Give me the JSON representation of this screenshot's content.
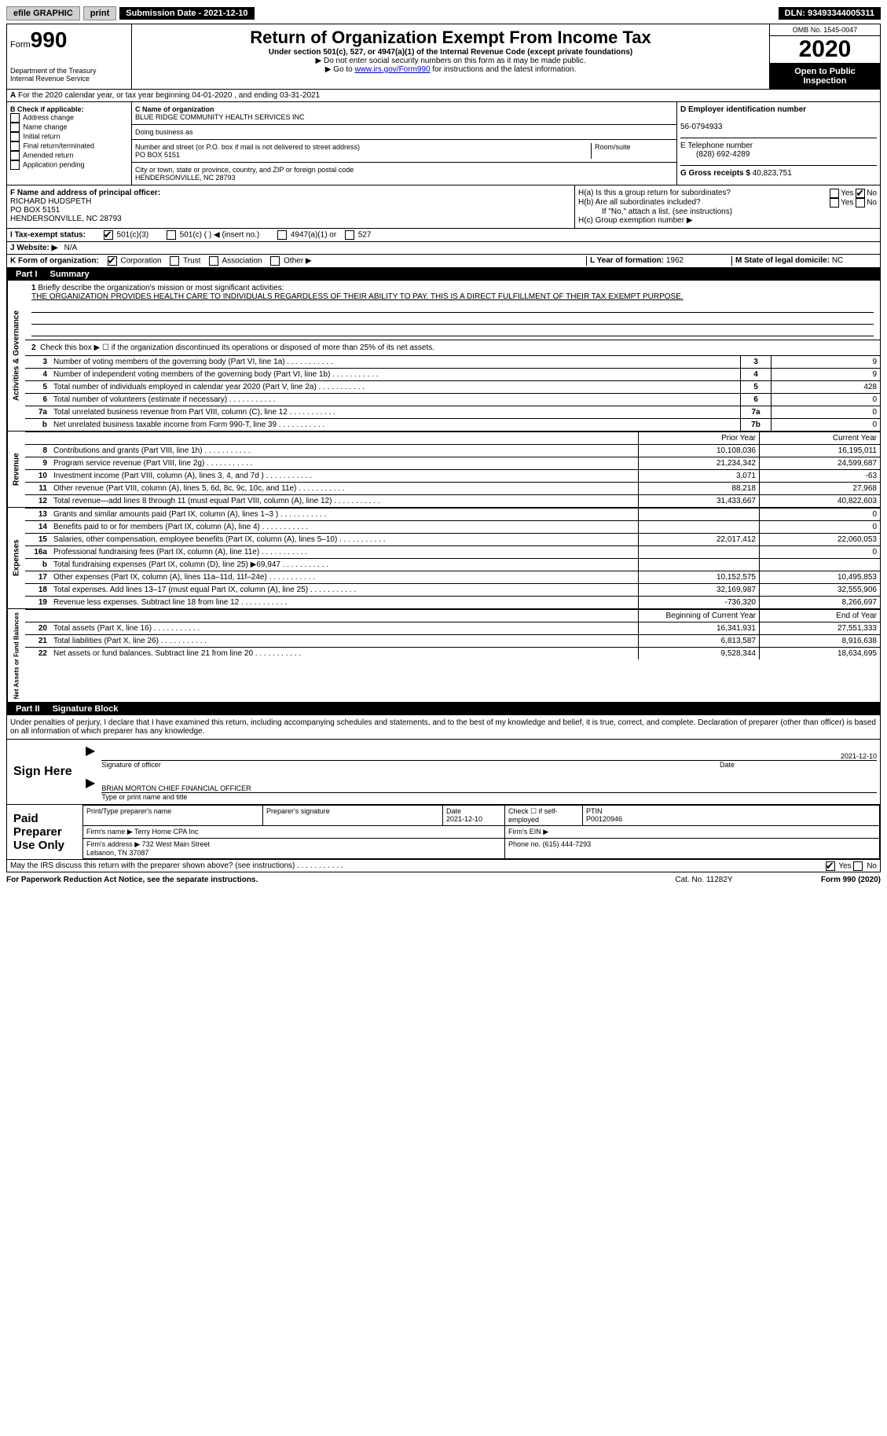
{
  "topbar": {
    "efile": "efile GRAPHIC",
    "print": "print",
    "submission_label": "Submission Date - 2021-12-10",
    "dln": "DLN: 93493344005311"
  },
  "header": {
    "form_label": "Form",
    "form_number": "990",
    "dept": "Department of the Treasury\nInternal Revenue Service",
    "title": "Return of Organization Exempt From Income Tax",
    "subtitle": "Under section 501(c), 527, or 4947(a)(1) of the Internal Revenue Code (except private foundations)",
    "instr1": "▶ Do not enter social security numbers on this form as it may be made public.",
    "instr2_pre": "▶ Go to ",
    "instr2_link": "www.irs.gov/Form990",
    "instr2_post": " for instructions and the latest information.",
    "omb": "OMB No. 1545-0047",
    "year": "2020",
    "open_public": "Open to Public Inspection"
  },
  "period": "For the 2020 calendar year, or tax year beginning 04-01-2020    , and ending 03-31-2021",
  "box_b": {
    "label": "B Check if applicable:",
    "items": [
      "Address change",
      "Name change",
      "Initial return",
      "Final return/terminated",
      "Amended return",
      "Application pending"
    ]
  },
  "box_c": {
    "name_label": "C Name of organization",
    "name": "BLUE RIDGE COMMUNITY HEALTH SERVICES INC",
    "dba_label": "Doing business as",
    "addr_label": "Number and street (or P.O. box if mail is not delivered to street address)",
    "room_label": "Room/suite",
    "addr": "PO BOX 5151",
    "city_label": "City or town, state or province, country, and ZIP or foreign postal code",
    "city": "HENDERSONVILLE, NC  28793"
  },
  "box_d": {
    "label": "D Employer identification number",
    "value": "56-0794933"
  },
  "box_e": {
    "label": "E Telephone number",
    "value": "(828) 692-4289"
  },
  "box_g": {
    "label": "G Gross receipts $",
    "value": "40,823,751"
  },
  "box_f": {
    "label": "F Name and address of principal officer:",
    "name": "RICHARD HUDSPETH",
    "addr1": "PO BOX 5151",
    "addr2": "HENDERSONVILLE, NC  28793"
  },
  "box_h": {
    "ha": "H(a)  Is this a group return for subordinates?",
    "hb": "H(b)  Are all subordinates included?",
    "hb_note": "If \"No,\" attach a list. (see instructions)",
    "hc": "H(c)  Group exemption number ▶",
    "yes": "Yes",
    "no": "No"
  },
  "box_i": {
    "label": "I    Tax-exempt status:",
    "opts": [
      "501(c)(3)",
      "501(c) (  ) ◀ (insert no.)",
      "4947(a)(1) or",
      "527"
    ]
  },
  "box_j": {
    "label": "J    Website: ▶",
    "value": "N/A"
  },
  "box_k": {
    "label": "K Form of organization:",
    "opts": [
      "Corporation",
      "Trust",
      "Association",
      "Other ▶"
    ]
  },
  "box_l": {
    "label": "L Year of formation:",
    "value": "1962"
  },
  "box_m": {
    "label": "M State of legal domicile:",
    "value": "NC"
  },
  "parts": {
    "p1_label": "Part I",
    "p1_title": "Summary",
    "p2_label": "Part II",
    "p2_title": "Signature Block"
  },
  "summary": {
    "q1_label": "1",
    "q1": "Briefly describe the organization's mission or most significant activities:",
    "q1_text": "THE ORGANIZATION PROVIDES HEALTH CARE TO INDIVIDUALS REGARDLESS OF THEIR ABILITY TO PAY. THIS IS A DIRECT FULFILLMENT OF THEIR TAX EXEMPT PURPOSE.",
    "q2": "Check this box ▶ ☐ if the organization discontinued its operations or disposed of more than 25% of its net assets.",
    "lines_gov": [
      {
        "n": "3",
        "desc": "Number of voting members of the governing body (Part VI, line 1a)",
        "box": "3",
        "val": "9"
      },
      {
        "n": "4",
        "desc": "Number of independent voting members of the governing body (Part VI, line 1b)",
        "box": "4",
        "val": "9"
      },
      {
        "n": "5",
        "desc": "Total number of individuals employed in calendar year 2020 (Part V, line 2a)",
        "box": "5",
        "val": "428"
      },
      {
        "n": "6",
        "desc": "Total number of volunteers (estimate if necessary)",
        "box": "6",
        "val": "0"
      },
      {
        "n": "7a",
        "desc": "Total unrelated business revenue from Part VIII, column (C), line 12",
        "box": "7a",
        "val": "0"
      },
      {
        "n": "b",
        "desc": "Net unrelated business taxable income from Form 990-T, line 39",
        "box": "7b",
        "val": "0"
      }
    ],
    "col_headers": {
      "prior": "Prior Year",
      "current": "Current Year"
    },
    "revenue": [
      {
        "n": "8",
        "desc": "Contributions and grants (Part VIII, line 1h)",
        "prior": "10,108,036",
        "cur": "16,195,011"
      },
      {
        "n": "9",
        "desc": "Program service revenue (Part VIII, line 2g)",
        "prior": "21,234,342",
        "cur": "24,599,687"
      },
      {
        "n": "10",
        "desc": "Investment income (Part VIII, column (A), lines 3, 4, and 7d )",
        "prior": "3,071",
        "cur": "-63"
      },
      {
        "n": "11",
        "desc": "Other revenue (Part VIII, column (A), lines 5, 6d, 8c, 9c, 10c, and 11e)",
        "prior": "88,218",
        "cur": "27,968"
      },
      {
        "n": "12",
        "desc": "Total revenue—add lines 8 through 11 (must equal Part VIII, column (A), line 12)",
        "prior": "31,433,667",
        "cur": "40,822,603"
      }
    ],
    "expenses": [
      {
        "n": "13",
        "desc": "Grants and similar amounts paid (Part IX, column (A), lines 1–3 )",
        "prior": "",
        "cur": "0"
      },
      {
        "n": "14",
        "desc": "Benefits paid to or for members (Part IX, column (A), line 4)",
        "prior": "",
        "cur": "0"
      },
      {
        "n": "15",
        "desc": "Salaries, other compensation, employee benefits (Part IX, column (A), lines 5–10)",
        "prior": "22,017,412",
        "cur": "22,060,053"
      },
      {
        "n": "16a",
        "desc": "Professional fundraising fees (Part IX, column (A), line 11e)",
        "prior": "",
        "cur": "0"
      },
      {
        "n": "b",
        "desc": "Total fundraising expenses (Part IX, column (D), line 25) ▶69,947",
        "prior": "grey",
        "cur": "grey"
      },
      {
        "n": "17",
        "desc": "Other expenses (Part IX, column (A), lines 11a–11d, 11f–24e)",
        "prior": "10,152,575",
        "cur": "10,495,853"
      },
      {
        "n": "18",
        "desc": "Total expenses. Add lines 13–17 (must equal Part IX, column (A), line 25)",
        "prior": "32,169,987",
        "cur": "32,555,906"
      },
      {
        "n": "19",
        "desc": "Revenue less expenses. Subtract line 18 from line 12",
        "prior": "-736,320",
        "cur": "8,266,697"
      }
    ],
    "net_headers": {
      "beg": "Beginning of Current Year",
      "end": "End of Year"
    },
    "net": [
      {
        "n": "20",
        "desc": "Total assets (Part X, line 16)",
        "prior": "16,341,931",
        "cur": "27,551,333"
      },
      {
        "n": "21",
        "desc": "Total liabilities (Part X, line 26)",
        "prior": "6,813,587",
        "cur": "8,916,638"
      },
      {
        "n": "22",
        "desc": "Net assets or fund balances. Subtract line 21 from line 20",
        "prior": "9,528,344",
        "cur": "18,634,695"
      }
    ],
    "vtabs": {
      "gov": "Activities & Governance",
      "rev": "Revenue",
      "exp": "Expenses",
      "net": "Net Assets or Fund Balances"
    }
  },
  "sig": {
    "decl": "Under penalties of perjury, I declare that I have examined this return, including accompanying schedules and statements, and to the best of my knowledge and belief, it is true, correct, and complete. Declaration of preparer (other than officer) is based on all information of which preparer has any knowledge.",
    "sign_here": "Sign Here",
    "sig_officer": "Signature of officer",
    "date_label": "Date",
    "date": "2021-12-10",
    "officer_name": "BRIAN MORTON  CHIEF FINANCIAL OFFICER",
    "type_name": "Type or print name and title",
    "paid_prep": "Paid Preparer Use Only",
    "prep_name_label": "Print/Type preparer's name",
    "prep_sig_label": "Preparer's signature",
    "prep_date": "2021-12-10",
    "check_self": "Check ☐ if self-employed",
    "ptin_label": "PTIN",
    "ptin": "P00120946",
    "firm_name_label": "Firm's name    ▶",
    "firm_name": "Terry Horne CPA Inc",
    "firm_ein_label": "Firm's EIN ▶",
    "firm_addr_label": "Firm's address ▶",
    "firm_addr": "732 West Main Street\nLebanon, TN  37087",
    "firm_phone_label": "Phone no.",
    "firm_phone": "(615) 444-7293",
    "may_irs": "May the IRS discuss this return with the preparer shown above? (see instructions)"
  },
  "footer": {
    "left": "For Paperwork Reduction Act Notice, see the separate instructions.",
    "mid": "Cat. No. 11282Y",
    "right": "Form 990 (2020)"
  }
}
